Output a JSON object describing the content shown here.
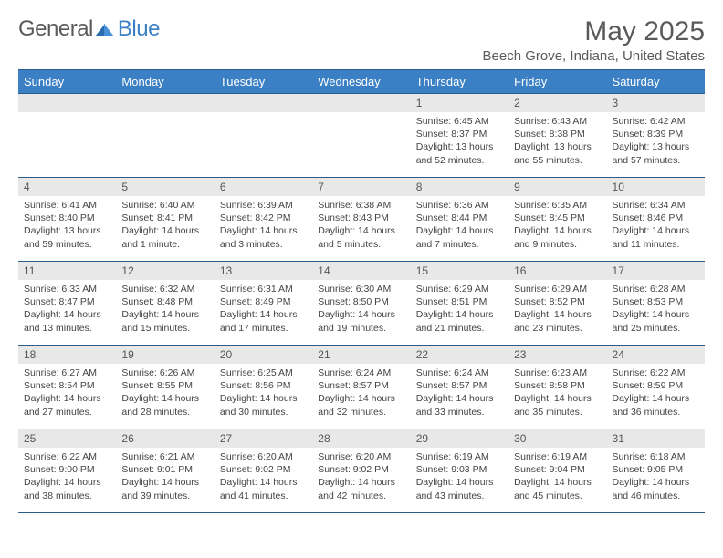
{
  "brand": {
    "left": "General",
    "right": "Blue"
  },
  "title": "May 2025",
  "location": "Beech Grove, Indiana, United States",
  "weekdays": [
    "Sunday",
    "Monday",
    "Tuesday",
    "Wednesday",
    "Thursday",
    "Friday",
    "Saturday"
  ],
  "colors": {
    "header_bg": "#3b7fc4",
    "header_border": "#2b5d8c",
    "daynum_bg": "#e8e8e8",
    "text": "#5a5a5a"
  },
  "grid": [
    [
      null,
      null,
      null,
      null,
      {
        "n": "1",
        "sr": "6:45 AM",
        "ss": "8:37 PM",
        "dl": "13 hours and 52 minutes."
      },
      {
        "n": "2",
        "sr": "6:43 AM",
        "ss": "8:38 PM",
        "dl": "13 hours and 55 minutes."
      },
      {
        "n": "3",
        "sr": "6:42 AM",
        "ss": "8:39 PM",
        "dl": "13 hours and 57 minutes."
      }
    ],
    [
      {
        "n": "4",
        "sr": "6:41 AM",
        "ss": "8:40 PM",
        "dl": "13 hours and 59 minutes."
      },
      {
        "n": "5",
        "sr": "6:40 AM",
        "ss": "8:41 PM",
        "dl": "14 hours and 1 minute."
      },
      {
        "n": "6",
        "sr": "6:39 AM",
        "ss": "8:42 PM",
        "dl": "14 hours and 3 minutes."
      },
      {
        "n": "7",
        "sr": "6:38 AM",
        "ss": "8:43 PM",
        "dl": "14 hours and 5 minutes."
      },
      {
        "n": "8",
        "sr": "6:36 AM",
        "ss": "8:44 PM",
        "dl": "14 hours and 7 minutes."
      },
      {
        "n": "9",
        "sr": "6:35 AM",
        "ss": "8:45 PM",
        "dl": "14 hours and 9 minutes."
      },
      {
        "n": "10",
        "sr": "6:34 AM",
        "ss": "8:46 PM",
        "dl": "14 hours and 11 minutes."
      }
    ],
    [
      {
        "n": "11",
        "sr": "6:33 AM",
        "ss": "8:47 PM",
        "dl": "14 hours and 13 minutes."
      },
      {
        "n": "12",
        "sr": "6:32 AM",
        "ss": "8:48 PM",
        "dl": "14 hours and 15 minutes."
      },
      {
        "n": "13",
        "sr": "6:31 AM",
        "ss": "8:49 PM",
        "dl": "14 hours and 17 minutes."
      },
      {
        "n": "14",
        "sr": "6:30 AM",
        "ss": "8:50 PM",
        "dl": "14 hours and 19 minutes."
      },
      {
        "n": "15",
        "sr": "6:29 AM",
        "ss": "8:51 PM",
        "dl": "14 hours and 21 minutes."
      },
      {
        "n": "16",
        "sr": "6:29 AM",
        "ss": "8:52 PM",
        "dl": "14 hours and 23 minutes."
      },
      {
        "n": "17",
        "sr": "6:28 AM",
        "ss": "8:53 PM",
        "dl": "14 hours and 25 minutes."
      }
    ],
    [
      {
        "n": "18",
        "sr": "6:27 AM",
        "ss": "8:54 PM",
        "dl": "14 hours and 27 minutes."
      },
      {
        "n": "19",
        "sr": "6:26 AM",
        "ss": "8:55 PM",
        "dl": "14 hours and 28 minutes."
      },
      {
        "n": "20",
        "sr": "6:25 AM",
        "ss": "8:56 PM",
        "dl": "14 hours and 30 minutes."
      },
      {
        "n": "21",
        "sr": "6:24 AM",
        "ss": "8:57 PM",
        "dl": "14 hours and 32 minutes."
      },
      {
        "n": "22",
        "sr": "6:24 AM",
        "ss": "8:57 PM",
        "dl": "14 hours and 33 minutes."
      },
      {
        "n": "23",
        "sr": "6:23 AM",
        "ss": "8:58 PM",
        "dl": "14 hours and 35 minutes."
      },
      {
        "n": "24",
        "sr": "6:22 AM",
        "ss": "8:59 PM",
        "dl": "14 hours and 36 minutes."
      }
    ],
    [
      {
        "n": "25",
        "sr": "6:22 AM",
        "ss": "9:00 PM",
        "dl": "14 hours and 38 minutes."
      },
      {
        "n": "26",
        "sr": "6:21 AM",
        "ss": "9:01 PM",
        "dl": "14 hours and 39 minutes."
      },
      {
        "n": "27",
        "sr": "6:20 AM",
        "ss": "9:02 PM",
        "dl": "14 hours and 41 minutes."
      },
      {
        "n": "28",
        "sr": "6:20 AM",
        "ss": "9:02 PM",
        "dl": "14 hours and 42 minutes."
      },
      {
        "n": "29",
        "sr": "6:19 AM",
        "ss": "9:03 PM",
        "dl": "14 hours and 43 minutes."
      },
      {
        "n": "30",
        "sr": "6:19 AM",
        "ss": "9:04 PM",
        "dl": "14 hours and 45 minutes."
      },
      {
        "n": "31",
        "sr": "6:18 AM",
        "ss": "9:05 PM",
        "dl": "14 hours and 46 minutes."
      }
    ]
  ],
  "labels": {
    "sunrise": "Sunrise: ",
    "sunset": "Sunset: ",
    "daylight": "Daylight: "
  }
}
